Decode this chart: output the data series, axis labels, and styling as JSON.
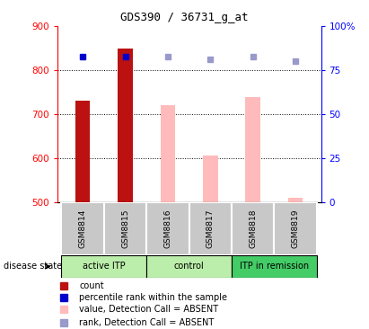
{
  "title": "GDS390 / 36731_g_at",
  "samples": [
    "GSM8814",
    "GSM8815",
    "GSM8816",
    "GSM8817",
    "GSM8818",
    "GSM8819"
  ],
  "bar_values": [
    730,
    850,
    720,
    607,
    740,
    510
  ],
  "bar_colors": [
    "#bb1111",
    "#bb1111",
    "#ffbbbb",
    "#ffbbbb",
    "#ffbbbb",
    "#ffbbbb"
  ],
  "rank_values": [
    83,
    83,
    83,
    81,
    83,
    80
  ],
  "rank_colors": [
    "#0000cc",
    "#0000cc",
    "#9999cc",
    "#9999cc",
    "#9999cc",
    "#9999cc"
  ],
  "ylim_left": [
    500,
    900
  ],
  "ylim_right": [
    0,
    100
  ],
  "yticks_left": [
    500,
    600,
    700,
    800,
    900
  ],
  "yticks_right": [
    0,
    25,
    50,
    75,
    100
  ],
  "yticklabels_right": [
    "0",
    "25",
    "50",
    "75",
    "100%"
  ],
  "grid_values": [
    600,
    700,
    800
  ],
  "group_data": [
    {
      "label": "active ITP",
      "start": 0,
      "end": 1,
      "color": "#bbeeaa"
    },
    {
      "label": "control",
      "start": 2,
      "end": 3,
      "color": "#bbeeaa"
    },
    {
      "label": "ITP in remission",
      "start": 4,
      "end": 5,
      "color": "#44cc66"
    }
  ],
  "legend_items": [
    {
      "color": "#bb1111",
      "label": "count"
    },
    {
      "color": "#0000cc",
      "label": "percentile rank within the sample"
    },
    {
      "color": "#ffbbbb",
      "label": "value, Detection Call = ABSENT"
    },
    {
      "color": "#9999cc",
      "label": "rank, Detection Call = ABSENT"
    }
  ],
  "disease_state_label": "disease state",
  "ybaseline": 500,
  "bar_width": 0.35
}
